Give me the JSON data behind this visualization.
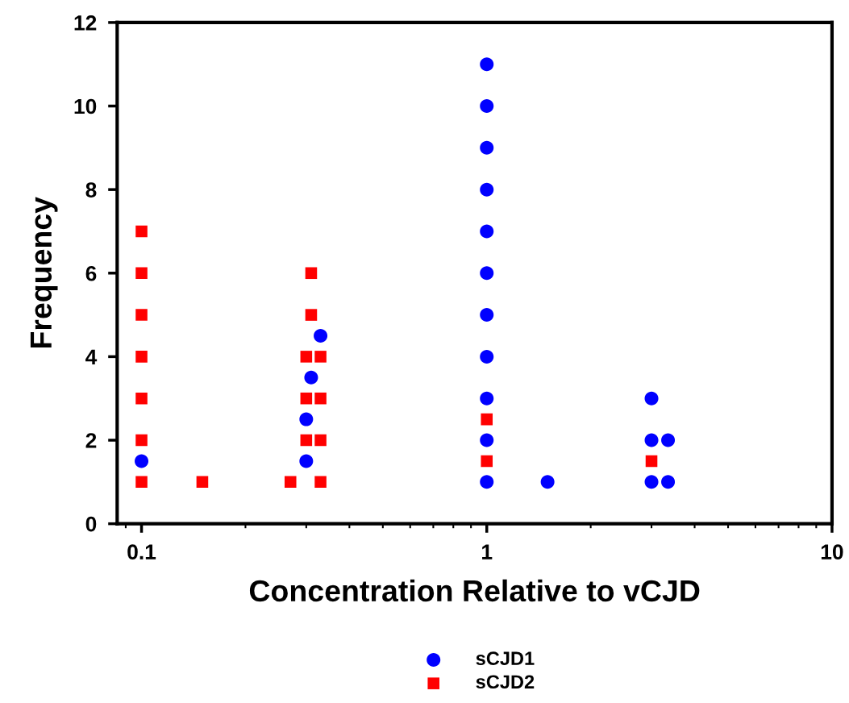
{
  "chart_data": {
    "type": "scatter",
    "xlabel": "Concentration Relative to vCJD",
    "ylabel": "Frequency",
    "log": "x",
    "xlim": [
      0.085,
      10
    ],
    "xticks": [
      0.1,
      1,
      10
    ],
    "ylim": [
      0,
      12
    ],
    "yticks": [
      0,
      2,
      4,
      6,
      8,
      10,
      12
    ],
    "grid": false,
    "legend": "bottom",
    "series": [
      {
        "name": "sCJD1",
        "color": "#0000ff",
        "marker": "circle",
        "x": [
          0.1,
          0.3,
          0.3,
          0.31,
          0.33,
          1,
          1,
          1,
          1,
          1,
          1,
          1,
          1,
          1,
          1,
          1,
          1.5,
          3,
          3,
          3,
          3.35,
          3.35
        ],
        "values": [
          1.5,
          1.5,
          2.5,
          3.5,
          4.5,
          1,
          2,
          3,
          4,
          5,
          6,
          7,
          8,
          9,
          10,
          11,
          1,
          1,
          2,
          3,
          1,
          2
        ]
      },
      {
        "name": "sCJD2",
        "color": "#ff0000",
        "marker": "square",
        "x": [
          0.1,
          0.1,
          0.1,
          0.1,
          0.1,
          0.1,
          0.1,
          0.15,
          0.27,
          0.3,
          0.3,
          0.3,
          0.31,
          0.31,
          0.33,
          0.33,
          0.33,
          0.33,
          1,
          1,
          3
        ],
        "values": [
          1,
          2,
          3,
          4,
          5,
          6,
          7,
          1,
          1,
          2,
          3,
          4,
          5,
          6,
          1,
          2,
          3,
          4,
          1.5,
          2.5,
          1.5
        ]
      }
    ]
  }
}
